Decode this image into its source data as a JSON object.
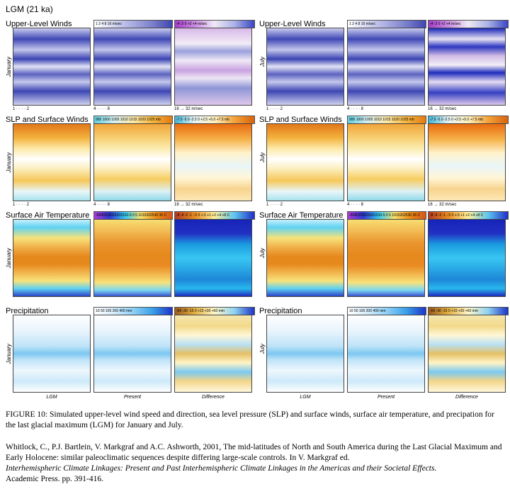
{
  "figure_title": "LGM (21 ka)",
  "rows": {
    "winds": {
      "title": "Upper-Level Winds",
      "scale_left": "1 2 4 8 16 m/sec",
      "scale_right": "-4 -2 0 +2 +4 m/sec",
      "leg_left": "1 · · · · 2",
      "leg_mid": "4 · · · · 8",
      "leg_right": "16 → 32 m/sec"
    },
    "slp": {
      "title": "SLP and Surface Winds",
      "scale_left": "995 1000 1005 1010 1015 1020 1025 mb",
      "scale_right": "-7.5 -5.0 -2.5 0 +2.5 +5.0 +7.5 mb",
      "leg_left": "1 · · · · 2",
      "leg_mid": "4 · · · · 8",
      "leg_right": "16 → 32 m/sec"
    },
    "temp": {
      "title": "Surface Air Temperature",
      "scale_left": "-5040353025201510-5 0 5 1015202530 35 C",
      "scale_right": "-8 -4 -2 -1 -.5 0 +.5 +1 +2 +4 +8 C"
    },
    "precip": {
      "title": "Precipitation",
      "scale_left": "10 50 100 200 400 mm",
      "scale_right": "-60 -30 -15 0 +15 +30 +60 mm"
    }
  },
  "months": {
    "left": "January",
    "right": "July"
  },
  "column_labels": {
    "lgm": "LGM",
    "present": "Present",
    "difference": "Difference"
  },
  "caption": "FIGURE 10: Simulated upper-level wind speed and direction, sea level pressure (SLP) and surface winds, surface air temperature, and precipation for the last glacial maximum (LGM) for January and July.",
  "citation": {
    "line1": "Whitlock, C., P.J. Bartlein, V. Markgraf and A.C. Ashworth, 2001,  The mid-latitudes of North and South America during the Last Glacial Maximum and Early Holocene:  similar paleoclimatic sequences despite differing large-scale controls.  In V. Markgraf ed.",
    "italic": "Interhemispheric Climate Linkages:  Present and Past Interhemispheric Climate Linkages in the Americas and their Societal Effects.",
    "line3": "Academic Press.  pp. 391-416."
  }
}
